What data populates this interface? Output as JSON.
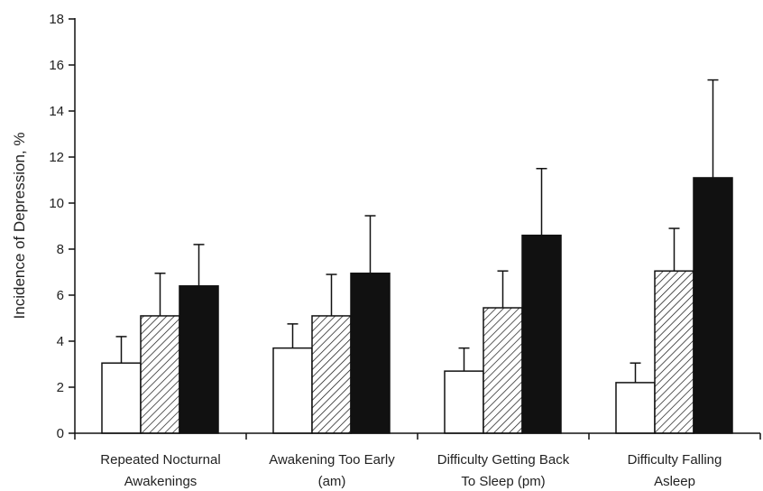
{
  "chart_data": {
    "type": "bar",
    "title": "",
    "xlabel": "",
    "ylabel": "Incidence of Depression, %",
    "ylim": [
      0,
      18
    ],
    "yticks": [
      0,
      2,
      4,
      6,
      8,
      10,
      12,
      14,
      16,
      18
    ],
    "categories": [
      [
        "Repeated Nocturnal",
        "Awakenings"
      ],
      [
        "Awakening Too Early",
        "(am)"
      ],
      [
        "Difficulty Getting Back",
        "To Sleep (pm)"
      ],
      [
        "Difficulty Falling",
        "Asleep"
      ]
    ],
    "series": [
      {
        "fill": "white",
        "values": [
          3.05,
          3.7,
          2.7,
          2.2
        ],
        "errors": [
          1.15,
          1.05,
          1.0,
          0.85
        ]
      },
      {
        "fill": "hatched",
        "values": [
          5.1,
          5.1,
          5.45,
          7.05
        ],
        "errors": [
          1.85,
          1.8,
          1.6,
          1.85
        ]
      },
      {
        "fill": "black",
        "values": [
          6.4,
          6.95,
          8.6,
          11.1
        ],
        "errors": [
          1.8,
          2.5,
          2.9,
          4.25
        ]
      }
    ],
    "grid": false,
    "legend": "none"
  }
}
